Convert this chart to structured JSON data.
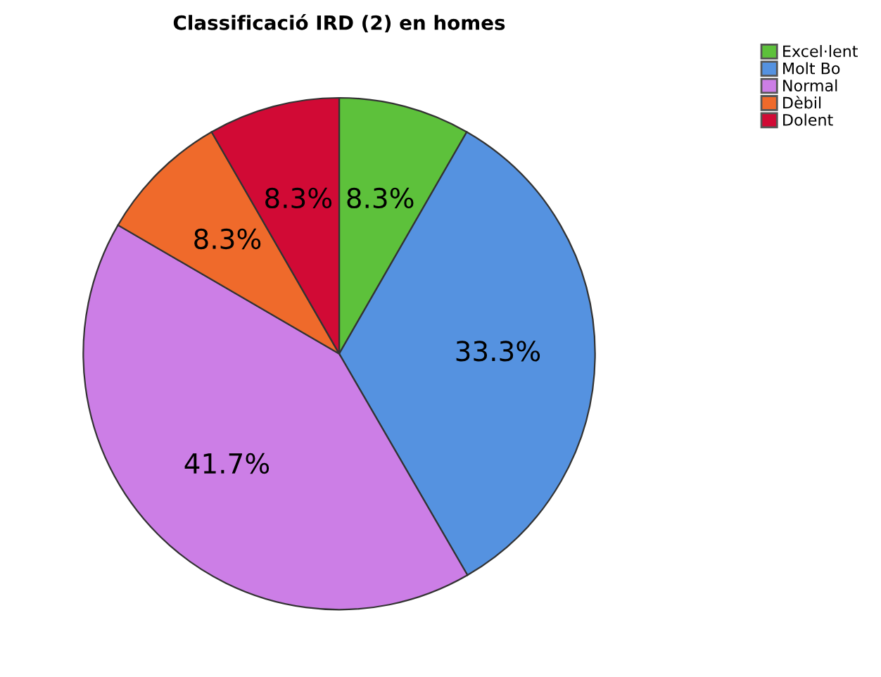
{
  "chart_data": {
    "type": "pie",
    "title": "Classificació IRD (2) en homes",
    "categories": [
      "Excel·lent",
      "Molt Bo",
      "Normal",
      "Dèbil",
      "Dolent"
    ],
    "values": [
      8.3,
      33.3,
      41.7,
      8.3,
      8.3
    ],
    "colors": [
      "#5dc13b",
      "#5592e0",
      "#cc7ee6",
      "#ef6a2b",
      "#d10a35"
    ],
    "value_labels": [
      "8.3%",
      "33.3%",
      "41.7%",
      "8.3%",
      "8.3%"
    ],
    "legend": "top right"
  }
}
